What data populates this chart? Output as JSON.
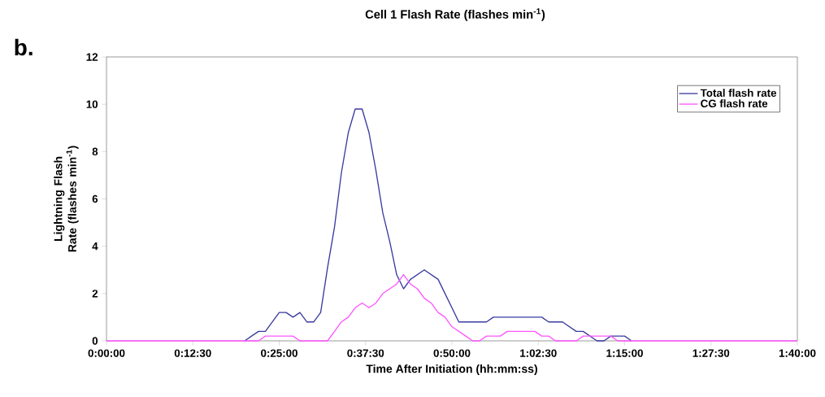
{
  "chart_data": {
    "type": "line",
    "title": "Cell 1 Flash Rate (flashes min$^{-1}$)",
    "xlabel": "Time After Initiation (hh:mm:ss)",
    "ylabel": "Lightning Flash Rate (flashes min$^{-1}$)",
    "annotations": [
      "b."
    ],
    "xlim": [
      0,
      100
    ],
    "ylim": [
      0,
      12
    ],
    "yticks": [
      0,
      2,
      4,
      6,
      8,
      10,
      12
    ],
    "xticks": [
      {
        "value": 0,
        "label": "0:00:00"
      },
      {
        "value": 12.5,
        "label": "0:12:30"
      },
      {
        "value": 25,
        "label": "0:25:00"
      },
      {
        "value": 37.5,
        "label": "0:37:30"
      },
      {
        "value": 50,
        "label": "0:50:00"
      },
      {
        "value": 62.5,
        "label": "1:02:30"
      },
      {
        "value": 75,
        "label": "1:15:00"
      },
      {
        "value": 87.5,
        "label": "1:27:30"
      },
      {
        "value": 100,
        "label": "1:40:00"
      }
    ],
    "legend": "top right",
    "grid": false,
    "marker": "none",
    "line_style": "solid",
    "series": [
      {
        "name": "Total flash rate",
        "color": "#3a3aa0",
        "x": [
          20,
          21,
          22,
          23,
          25,
          26,
          27,
          28,
          29,
          30,
          31,
          32,
          33,
          34,
          35,
          36,
          37,
          38,
          39,
          40,
          41,
          42,
          43,
          44,
          46,
          48,
          49,
          50,
          51,
          55,
          56,
          63,
          64,
          66,
          68,
          69,
          71,
          72,
          73,
          75,
          76
        ],
        "values": [
          0,
          0.2,
          0.4,
          0.4,
          1.2,
          1.2,
          1.0,
          1.2,
          0.8,
          0.8,
          1.2,
          3.1,
          4.8,
          7.1,
          8.8,
          9.8,
          9.8,
          8.8,
          7.2,
          5.4,
          4.2,
          2.8,
          2.2,
          2.6,
          3.0,
          2.6,
          2.0,
          1.4,
          0.8,
          0.8,
          1.0,
          1.0,
          0.8,
          0.8,
          0.4,
          0.4,
          0,
          0,
          0.2,
          0.2,
          0
        ]
      },
      {
        "name": "CG flash rate",
        "color": "#ff55ff",
        "x": [
          0,
          22,
          23,
          27,
          28,
          32,
          33,
          34,
          35,
          36,
          37,
          38,
          39,
          40,
          41,
          42,
          43,
          44,
          45,
          46,
          47,
          48,
          49,
          50,
          52,
          53,
          54,
          55,
          57,
          58,
          62,
          63,
          64,
          65,
          68,
          69,
          73,
          74,
          100
        ],
        "values": [
          0,
          0,
          0.2,
          0.2,
          0,
          0,
          0.4,
          0.8,
          1.0,
          1.4,
          1.6,
          1.4,
          1.6,
          2.0,
          2.2,
          2.4,
          2.8,
          2.4,
          2.2,
          1.8,
          1.6,
          1.2,
          1.0,
          0.6,
          0.2,
          0,
          0,
          0.2,
          0.2,
          0.4,
          0.4,
          0.2,
          0.2,
          0,
          0,
          0.2,
          0.2,
          0,
          0
        ]
      }
    ]
  }
}
